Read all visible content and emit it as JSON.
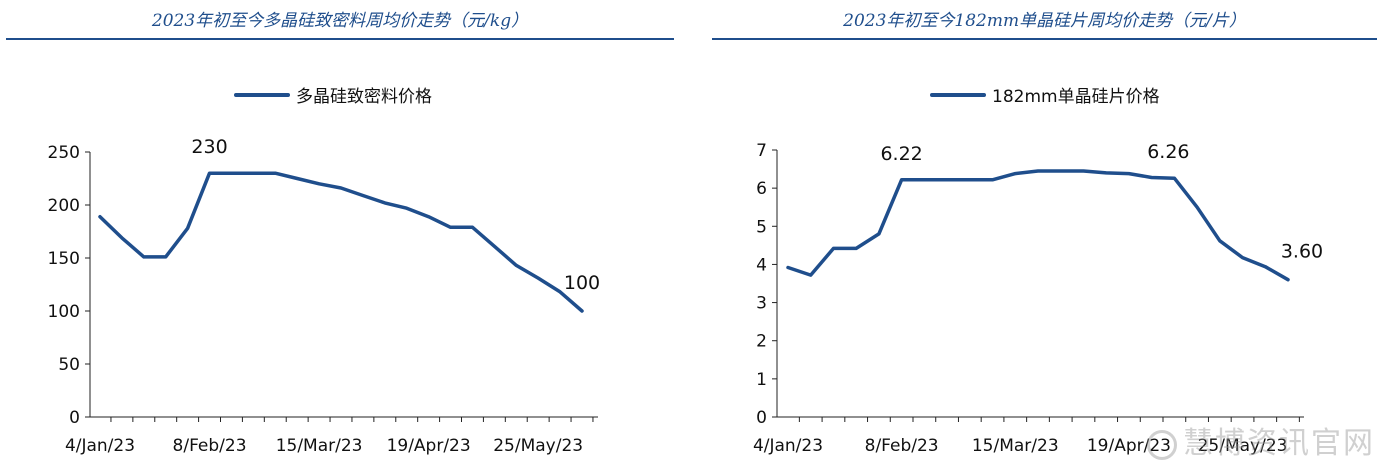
{
  "chart_data": [
    {
      "type": "line",
      "title": "2023年初至今多晶硅致密料周均价走势（元/kg）",
      "series": [
        {
          "name": "多晶硅致密料价格",
          "values": [
            189,
            169,
            151,
            151,
            178,
            230,
            230,
            230,
            230,
            225,
            220,
            216,
            209,
            202,
            197,
            189,
            179,
            179,
            161,
            143,
            131,
            118,
            100
          ]
        }
      ],
      "xtick_labels": [
        "4/Jan/23",
        "8/Feb/23",
        "15/Mar/23",
        "19/Apr/23",
        "25/May/23"
      ],
      "ylim": [
        0,
        250
      ],
      "yticks": [
        0,
        50,
        100,
        150,
        200,
        250
      ],
      "annotations": [
        "230",
        "100"
      ],
      "grid": false,
      "legend_position": "top-center",
      "color": "#1f4e8c"
    },
    {
      "type": "line",
      "title": "2023年初至今182mm单晶硅片周均价走势（元/片）",
      "series": [
        {
          "name": "182mm单晶硅片价格",
          "values": [
            3.92,
            3.72,
            4.42,
            4.42,
            4.8,
            6.22,
            6.22,
            6.22,
            6.22,
            6.22,
            6.38,
            6.45,
            6.45,
            6.45,
            6.4,
            6.38,
            6.28,
            6.26,
            5.5,
            4.62,
            4.18,
            3.94,
            3.6
          ]
        }
      ],
      "xtick_labels": [
        "4/Jan/23",
        "8/Feb/23",
        "15/Mar/23",
        "19/Apr/23",
        "25/May/23"
      ],
      "ylim": [
        0,
        7
      ],
      "yticks": [
        0,
        1,
        2,
        3,
        4,
        5,
        6,
        7
      ],
      "annotations": [
        "6.22",
        "6.26",
        "3.60"
      ],
      "grid": false,
      "legend_position": "top-center",
      "color": "#1f4e8c"
    }
  ],
  "watermark": "慧博资讯官网"
}
